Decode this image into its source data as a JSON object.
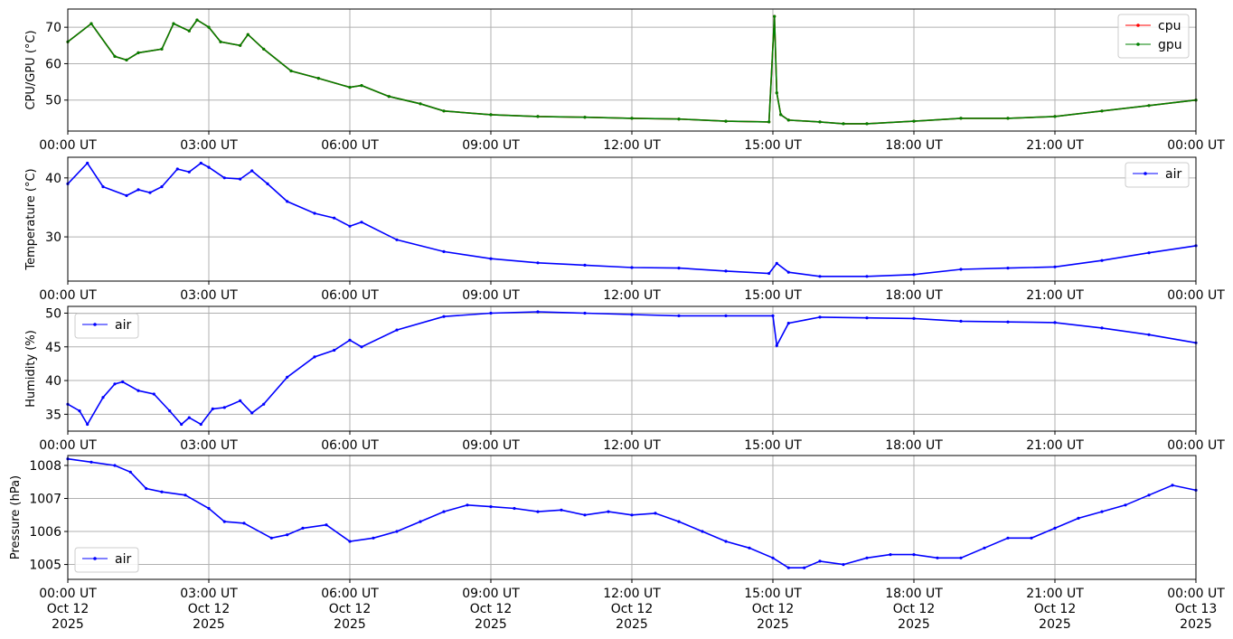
{
  "chart_data": [
    {
      "type": "line",
      "ylabel": "CPU/GPU (°C)",
      "ylim": [
        41.5,
        75
      ],
      "yticks": [
        50,
        60,
        70
      ],
      "xlim": [
        "2025-10-12T00:00",
        "2025-10-13T00:00"
      ],
      "xtick_labels": [
        "00:00 UT",
        "03:00 UT",
        "06:00 UT",
        "09:00 UT",
        "12:00 UT",
        "15:00 UT",
        "18:00 UT",
        "21:00 UT",
        "00:00 UT"
      ],
      "grid": true,
      "legend_position": "upper right",
      "x": [
        "00:00",
        "00:30",
        "01:00",
        "01:15",
        "01:30",
        "02:00",
        "02:15",
        "02:35",
        "02:45",
        "03:00",
        "03:15",
        "03:40",
        "03:50",
        "04:10",
        "04:45",
        "05:20",
        "06:00",
        "06:15",
        "06:50",
        "07:30",
        "08:00",
        "09:00",
        "10:00",
        "11:00",
        "12:00",
        "13:00",
        "14:00",
        "14:55",
        "15:02",
        "15:05",
        "15:10",
        "15:20",
        "16:00",
        "16:30",
        "17:00",
        "18:00",
        "19:00",
        "20:00",
        "21:00",
        "22:00",
        "23:00",
        "00:00"
      ],
      "series": [
        {
          "name": "cpu",
          "color": "#ff0000",
          "values": [
            66,
            71,
            62,
            61,
            63,
            64,
            71,
            69,
            72,
            70,
            66,
            65,
            68,
            64,
            58,
            56,
            53.5,
            54,
            51,
            49,
            47,
            46,
            45.5,
            45.3,
            45,
            44.8,
            44.2,
            44,
            73,
            52,
            46,
            44.5,
            44,
            43.5,
            43.5,
            44.2,
            45,
            45,
            45.5,
            47,
            48.5,
            50
          ]
        },
        {
          "name": "gpu",
          "color": "#008000",
          "values": [
            66,
            71,
            62,
            61,
            63,
            64,
            71,
            69,
            72,
            70,
            66,
            65,
            68,
            64,
            58,
            56,
            53.5,
            54,
            51,
            49,
            47,
            46,
            45.5,
            45.3,
            45,
            44.8,
            44.2,
            44,
            73,
            52,
            46,
            44.5,
            44,
            43.5,
            43.5,
            44.2,
            45,
            45,
            45.5,
            47,
            48.5,
            50
          ]
        }
      ]
    },
    {
      "type": "line",
      "ylabel": "Temperature (°C)",
      "ylim": [
        22.5,
        43.5
      ],
      "yticks": [
        30,
        40
      ],
      "xlim": [
        "2025-10-12T00:00",
        "2025-10-13T00:00"
      ],
      "xtick_labels": [
        "00:00 UT",
        "03:00 UT",
        "06:00 UT",
        "09:00 UT",
        "12:00 UT",
        "15:00 UT",
        "18:00 UT",
        "21:00 UT",
        "00:00 UT"
      ],
      "grid": true,
      "legend_position": "upper right",
      "x": [
        "00:00",
        "00:25",
        "00:45",
        "01:15",
        "01:30",
        "01:45",
        "02:00",
        "02:20",
        "02:35",
        "02:50",
        "03:00",
        "03:20",
        "03:40",
        "03:55",
        "04:15",
        "04:40",
        "05:15",
        "05:40",
        "06:00",
        "06:15",
        "07:00",
        "08:00",
        "09:00",
        "10:00",
        "11:00",
        "12:00",
        "13:00",
        "14:00",
        "14:55",
        "15:05",
        "15:20",
        "16:00",
        "17:00",
        "18:00",
        "19:00",
        "20:00",
        "21:00",
        "22:00",
        "23:00",
        "00:00"
      ],
      "series": [
        {
          "name": "air",
          "color": "#0000ff",
          "values": [
            39,
            42.5,
            38.5,
            37,
            38,
            37.5,
            38.5,
            41.5,
            41,
            42.5,
            41.8,
            40,
            39.8,
            41.2,
            39,
            36,
            34,
            33.2,
            31.8,
            32.5,
            29.5,
            27.5,
            26.3,
            25.6,
            25.2,
            24.8,
            24.7,
            24.2,
            23.8,
            25.5,
            24,
            23.3,
            23.3,
            23.6,
            24.5,
            24.7,
            24.9,
            26,
            27.3,
            28.5
          ]
        }
      ]
    },
    {
      "type": "line",
      "ylabel": "Humidity (%)",
      "ylim": [
        32.5,
        51
      ],
      "yticks": [
        35,
        40,
        45,
        50
      ],
      "xlim": [
        "2025-10-12T00:00",
        "2025-10-13T00:00"
      ],
      "xtick_labels": [
        "00:00 UT",
        "03:00 UT",
        "06:00 UT",
        "09:00 UT",
        "12:00 UT",
        "15:00 UT",
        "18:00 UT",
        "21:00 UT",
        "00:00 UT"
      ],
      "grid": true,
      "legend_position": "upper left",
      "x": [
        "00:00",
        "00:15",
        "00:25",
        "00:45",
        "01:00",
        "01:10",
        "01:30",
        "01:50",
        "02:10",
        "02:25",
        "02:35",
        "02:50",
        "03:05",
        "03:20",
        "03:40",
        "03:55",
        "04:10",
        "04:40",
        "05:15",
        "05:40",
        "06:00",
        "06:15",
        "07:00",
        "08:00",
        "09:00",
        "10:00",
        "11:00",
        "12:00",
        "13:00",
        "14:00",
        "15:00",
        "15:05",
        "15:20",
        "16:00",
        "17:00",
        "18:00",
        "19:00",
        "20:00",
        "21:00",
        "22:00",
        "23:00",
        "00:00"
      ],
      "series": [
        {
          "name": "air",
          "color": "#0000ff",
          "values": [
            36.5,
            35.5,
            33.5,
            37.5,
            39.5,
            39.8,
            38.5,
            38,
            35.5,
            33.5,
            34.5,
            33.5,
            35.8,
            36,
            37,
            35.2,
            36.5,
            40.5,
            43.5,
            44.5,
            46,
            45,
            47.5,
            49.5,
            50,
            50.2,
            50,
            49.8,
            49.6,
            49.6,
            49.6,
            45.2,
            48.5,
            49.4,
            49.3,
            49.2,
            48.8,
            48.7,
            48.6,
            47.8,
            46.8,
            45.6
          ]
        }
      ]
    },
    {
      "type": "line",
      "ylabel": "Pressure (hPa)",
      "ylim": [
        1004.55,
        1008.3
      ],
      "yticks": [
        1005,
        1006,
        1007,
        1008
      ],
      "xlim": [
        "2025-10-12T00:00",
        "2025-10-13T00:00"
      ],
      "xtick_labels": [
        "00:00 UT\nOct 12\n2025",
        "03:00 UT\nOct 12\n2025",
        "06:00 UT\nOct 12\n2025",
        "09:00 UT\nOct 12\n2025",
        "12:00 UT\nOct 12\n2025",
        "15:00 UT\nOct 12\n2025",
        "18:00 UT\nOct 12\n2025",
        "21:00 UT\nOct 12\n2025",
        "00:00 UT\nOct 13\n2025"
      ],
      "grid": true,
      "legend_position": "lower left",
      "x": [
        "00:00",
        "00:30",
        "01:00",
        "01:20",
        "01:40",
        "02:00",
        "02:30",
        "03:00",
        "03:20",
        "03:45",
        "04:20",
        "04:40",
        "05:00",
        "05:30",
        "06:00",
        "06:30",
        "07:00",
        "07:30",
        "08:00",
        "08:30",
        "09:00",
        "09:30",
        "10:00",
        "10:30",
        "11:00",
        "11:30",
        "12:00",
        "12:30",
        "13:00",
        "13:30",
        "14:00",
        "14:30",
        "15:00",
        "15:20",
        "15:40",
        "16:00",
        "16:30",
        "17:00",
        "17:30",
        "18:00",
        "18:30",
        "19:00",
        "19:30",
        "20:00",
        "20:30",
        "21:00",
        "21:30",
        "22:00",
        "22:30",
        "23:00",
        "23:30",
        "00:00"
      ],
      "series": [
        {
          "name": "air",
          "color": "#0000ff",
          "values": [
            1008.2,
            1008.1,
            1008,
            1007.8,
            1007.3,
            1007.2,
            1007.1,
            1006.7,
            1006.3,
            1006.25,
            1005.8,
            1005.9,
            1006.1,
            1006.2,
            1005.7,
            1005.8,
            1006,
            1006.3,
            1006.6,
            1006.8,
            1006.75,
            1006.7,
            1006.6,
            1006.65,
            1006.5,
            1006.6,
            1006.5,
            1006.55,
            1006.3,
            1006,
            1005.7,
            1005.5,
            1005.2,
            1004.9,
            1004.9,
            1005.1,
            1005,
            1005.2,
            1005.3,
            1005.3,
            1005.2,
            1005.2,
            1005.5,
            1005.8,
            1005.8,
            1006.1,
            1006.4,
            1006.6,
            1006.8,
            1007.1,
            1007.4,
            1007.25
          ]
        }
      ]
    }
  ]
}
